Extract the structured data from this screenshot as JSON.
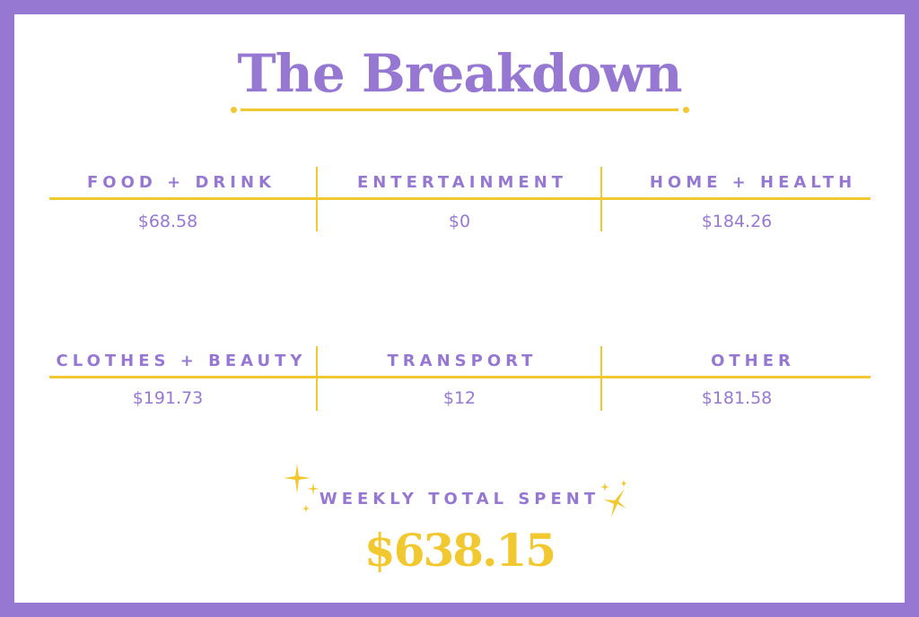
{
  "title": "The Breakdown",
  "categories": [
    {
      "label": "FOOD + DRINK",
      "amount": "$68.58"
    },
    {
      "label": "ENTERTAINMENT",
      "amount": "$0"
    },
    {
      "label": "HOME + HEALTH",
      "amount": "$184.26"
    },
    {
      "label": "CLOTHES + BEAUTY",
      "amount": "$191.73"
    },
    {
      "label": "TRANSPORT",
      "amount": "$12"
    },
    {
      "label": "OTHER",
      "amount": "$181.58"
    }
  ],
  "total": {
    "label": "WEEKLY TOTAL SPENT",
    "amount": "$638.15"
  },
  "colors": {
    "purple": "#9678d3",
    "yellow": "#f2c830"
  }
}
